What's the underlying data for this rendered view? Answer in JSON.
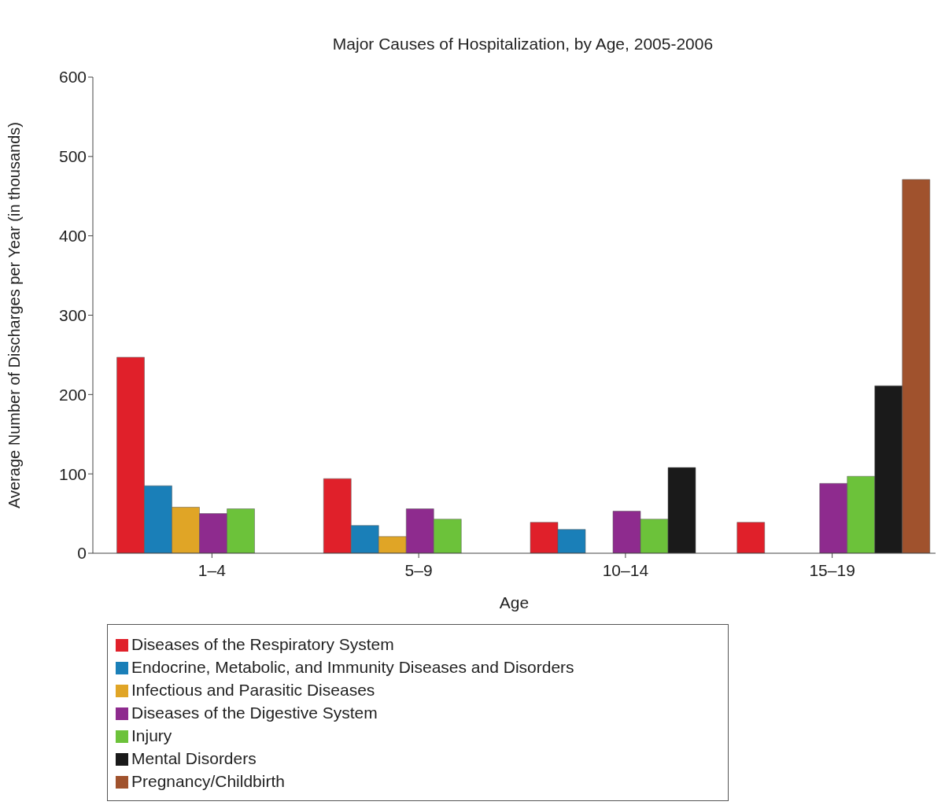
{
  "chart_data": {
    "type": "bar",
    "title": "Major Causes of Hospitalization, by Age, 2005-2006",
    "xlabel": "Age",
    "ylabel": "Average Number of Discharges per Year (in thousands)",
    "categories": [
      "1–4",
      "5–9",
      "10–14",
      "15–19"
    ],
    "series": [
      {
        "name": "Diseases of the Respiratory System",
        "color": "#e0202a",
        "values": [
          247,
          94,
          39,
          39
        ]
      },
      {
        "name": "Endocrine, Metabolic, and Immunity Diseases and Disorders",
        "color": "#1a7fb8",
        "values": [
          85,
          35,
          30,
          null
        ]
      },
      {
        "name": "Infectious and Parasitic Diseases",
        "color": "#e0a526",
        "values": [
          58,
          21,
          null,
          null
        ]
      },
      {
        "name": "Diseases of the Digestive System",
        "color": "#8e2b8e",
        "values": [
          50,
          56,
          53,
          88
        ]
      },
      {
        "name": "Injury",
        "color": "#6cc23a",
        "values": [
          56,
          43,
          43,
          97
        ]
      },
      {
        "name": "Mental Disorders",
        "color": "#1a1a1a",
        "values": [
          null,
          null,
          108,
          211
        ]
      },
      {
        "name": "Pregnancy/Childbirth",
        "color": "#a0522d",
        "values": [
          null,
          null,
          null,
          471
        ]
      }
    ],
    "ylim": [
      0,
      600
    ],
    "yticks": [
      0,
      100,
      200,
      300,
      400,
      500,
      600
    ],
    "grid": false,
    "legend": "bottom"
  }
}
